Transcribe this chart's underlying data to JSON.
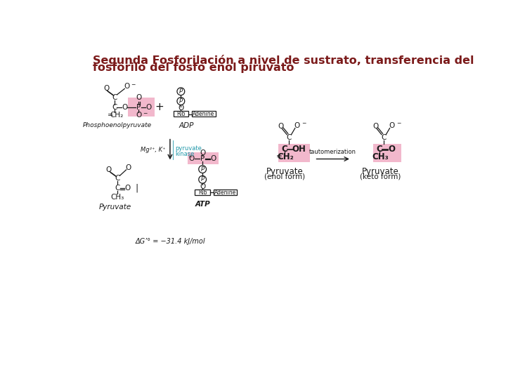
{
  "title_line1": "Segunda Fosforilación a nivel de sustrato, transferencia del",
  "title_line2": "fosforilo del fosfo enol piruvato",
  "title_color": "#7B1A1A",
  "title_fontsize": 11.5,
  "bg_color": "#FFFFFF",
  "pink_highlight": "#F2B8CC",
  "text_color": "#1A1A1A",
  "cyan_color": "#2299AA",
  "delta_g": "ΔG’° = −31.4 kJ/mol"
}
